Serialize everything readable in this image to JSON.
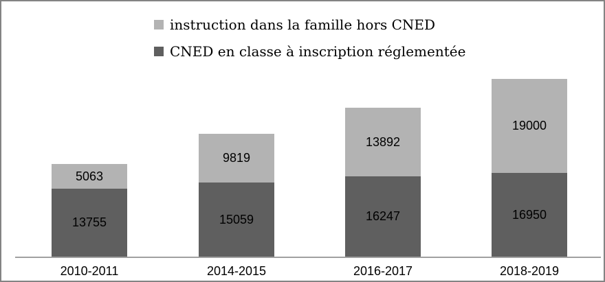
{
  "chart_data": {
    "type": "bar",
    "subtype": "stacked-vertical",
    "categories": [
      "2010-2011",
      "2014-2015",
      "2016-2017",
      "2018-2019"
    ],
    "series": [
      {
        "name": "CNED en classe à inscription réglementée",
        "color": "#5f5f5f",
        "values": [
          13755,
          15059,
          16247,
          16950
        ]
      },
      {
        "name": "instruction dans la famille hors CNED",
        "color": "#b3b3b3",
        "values": [
          5063,
          9819,
          13892,
          19000
        ]
      }
    ],
    "data_labels": true,
    "grid": false,
    "y_axis_visible": false,
    "legend_position": "top-center",
    "axis_line_color": "#a0a0a0"
  },
  "legend": {
    "items": [
      {
        "label": "instruction dans la famille hors CNED",
        "color": "#b3b3b3"
      },
      {
        "label": "CNED en classe à inscription réglementée",
        "color": "#5f5f5f"
      }
    ]
  }
}
